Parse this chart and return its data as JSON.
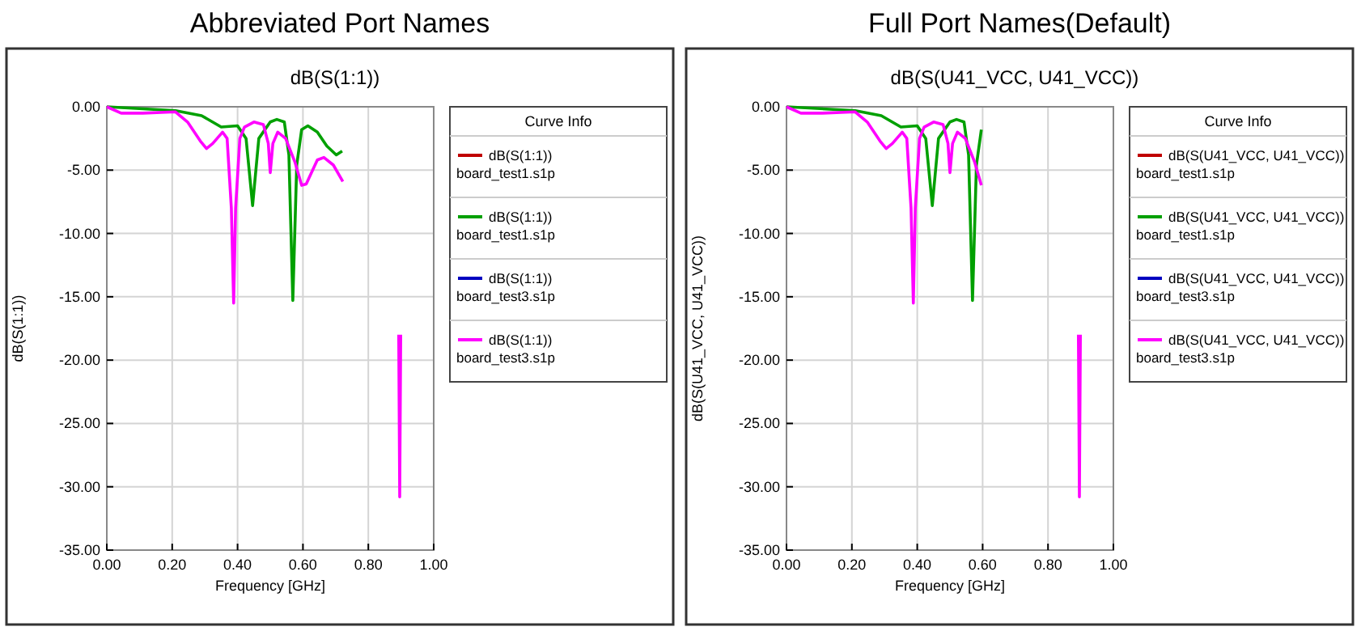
{
  "chart_data": [
    {
      "type": "line",
      "title": "Abbreviated Port Names",
      "subtitle": "dB(S(1:1))",
      "xlabel": "Frequency [GHz]",
      "ylabel": "dB(S(1:1))",
      "legend_title": "Curve Info",
      "legend": "right",
      "grid": true,
      "line_style": "solid",
      "marker": "none",
      "xlim": [
        0,
        1
      ],
      "ylim": [
        -35,
        0
      ],
      "xticks": [
        {
          "value": 0,
          "label": "0.00"
        },
        {
          "value": 0.2,
          "label": "0.20"
        },
        {
          "value": 0.4,
          "label": "0.40"
        },
        {
          "value": 0.6,
          "label": "0.60"
        },
        {
          "value": 0.8,
          "label": "0.80"
        },
        {
          "value": 1,
          "label": "1.00"
        }
      ],
      "yticks": [
        {
          "value": -35,
          "label": "-35.00"
        },
        {
          "value": -30,
          "label": "-30.00"
        },
        {
          "value": -25,
          "label": "-25.00"
        },
        {
          "value": -20,
          "label": "-20.00"
        },
        {
          "value": -15,
          "label": "-15.00"
        },
        {
          "value": -10,
          "label": "-10.00"
        },
        {
          "value": -5,
          "label": "-5.00"
        },
        {
          "value": 0,
          "label": "0.00"
        }
      ],
      "series": [
        {
          "name": "dB(S(1:1))\nboard_test1.s1p",
          "color": "#c00000"
        },
        {
          "name": "dB(S(1:1))\nboard_test1.s1p",
          "color": "#00a000",
          "x": [
            0,
            0.21,
            0.29,
            0.35,
            0.4,
            0.426,
            0.446,
            0.465,
            0.5,
            0.52,
            0.543,
            0.557,
            0.569,
            0.581,
            0.596,
            0.615,
            0.644,
            0.673,
            0.702,
            0.72
          ],
          "values": [
            0,
            -0.3,
            -0.7,
            -1.6,
            -1.5,
            -2.5,
            -7.8,
            -2.5,
            -1.2,
            -1.0,
            -1.2,
            -3.8,
            -15.3,
            -4.6,
            -1.8,
            -1.5,
            -2.0,
            -3.1,
            -3.8,
            -3.5
          ]
        },
        {
          "name": "dB(S(1:1))\nboard_test3.s1p",
          "color": "#0000c0"
        },
        {
          "name": "dB(S(1:1))\nboard_test3.s1p",
          "color": "#ff00ff",
          "x": [
            0,
            0.044,
            0.11,
            0.21,
            0.247,
            0.286,
            0.305,
            0.324,
            0.354,
            0.368,
            0.381,
            0.388,
            0.394,
            0.407,
            0.421,
            0.45,
            0.479,
            0.494,
            0.5,
            0.508,
            0.523,
            0.547,
            0.576,
            0.596,
            0.61,
            0.644,
            0.664,
            0.693,
            0.722,
            null,
            0.893,
            0.896,
            0.899
          ],
          "values": [
            0,
            -0.5,
            -0.5,
            -0.4,
            -1.2,
            -2.7,
            -3.3,
            -2.9,
            -2.0,
            -2.5,
            -8.0,
            -15.5,
            -8.0,
            -2.5,
            -1.6,
            -1.2,
            -1.4,
            -2.9,
            -5.2,
            -2.9,
            -2.0,
            -2.5,
            -4.4,
            -6.2,
            -6.1,
            -4.2,
            -4.0,
            -4.6,
            -5.9,
            null,
            -18,
            -30.8,
            -18
          ]
        }
      ]
    },
    {
      "type": "line",
      "title": "Full Port Names(Default)",
      "subtitle": "dB(S(U41_VCC, U41_VCC))",
      "xlabel": "Frequency [GHz]",
      "ylabel": "dB(S(U41_VCC, U41_VCC))",
      "legend_title": "Curve Info",
      "legend": "right",
      "grid": true,
      "line_style": "solid",
      "marker": "none",
      "xlim": [
        0,
        1
      ],
      "ylim": [
        -35,
        0
      ],
      "xticks": [
        {
          "value": 0,
          "label": "0.00"
        },
        {
          "value": 0.2,
          "label": "0.20"
        },
        {
          "value": 0.4,
          "label": "0.40"
        },
        {
          "value": 0.6,
          "label": "0.60"
        },
        {
          "value": 0.8,
          "label": "0.80"
        },
        {
          "value": 1,
          "label": "1.00"
        }
      ],
      "yticks": [
        {
          "value": -35,
          "label": "-35.00"
        },
        {
          "value": -30,
          "label": "-30.00"
        },
        {
          "value": -25,
          "label": "-25.00"
        },
        {
          "value": -20,
          "label": "-20.00"
        },
        {
          "value": -15,
          "label": "-15.00"
        },
        {
          "value": -10,
          "label": "-10.00"
        },
        {
          "value": -5,
          "label": "-5.00"
        },
        {
          "value": 0,
          "label": "0.00"
        }
      ],
      "series": [
        {
          "name": "dB(S(U41_VCC, U41_VCC))\nboard_test1.s1p",
          "color": "#c00000"
        },
        {
          "name": "dB(S(U41_VCC, U41_VCC))\nboard_test1.s1p",
          "color": "#00a000",
          "x": [
            0,
            0.21,
            0.29,
            0.35,
            0.4,
            0.426,
            0.446,
            0.465,
            0.5,
            0.52,
            0.543,
            0.557,
            0.569,
            0.581,
            0.596
          ],
          "values": [
            0,
            -0.3,
            -0.7,
            -1.6,
            -1.5,
            -2.5,
            -7.8,
            -2.5,
            -1.2,
            -1.0,
            -1.2,
            -3.8,
            -15.3,
            -4.6,
            -1.8
          ]
        },
        {
          "name": "dB(S(U41_VCC, U41_VCC))\nboard_test3.s1p",
          "color": "#0000c0"
        },
        {
          "name": "dB(S(U41_VCC, U41_VCC))\nboard_test3.s1p",
          "color": "#ff00ff",
          "x": [
            0,
            0.044,
            0.11,
            0.21,
            0.247,
            0.286,
            0.305,
            0.324,
            0.354,
            0.368,
            0.381,
            0.388,
            0.394,
            0.407,
            0.421,
            0.45,
            0.479,
            0.494,
            0.5,
            0.508,
            0.523,
            0.547,
            0.576,
            0.596,
            null,
            0.893,
            0.896,
            0.899
          ],
          "values": [
            0,
            -0.5,
            -0.5,
            -0.4,
            -1.2,
            -2.7,
            -3.3,
            -2.9,
            -2.0,
            -2.5,
            -8.0,
            -15.5,
            -8.0,
            -2.5,
            -1.6,
            -1.2,
            -1.4,
            -2.9,
            -5.2,
            -2.9,
            -2.0,
            -2.5,
            -4.4,
            -6.2,
            null,
            -18,
            -30.8,
            -18
          ]
        }
      ]
    }
  ]
}
